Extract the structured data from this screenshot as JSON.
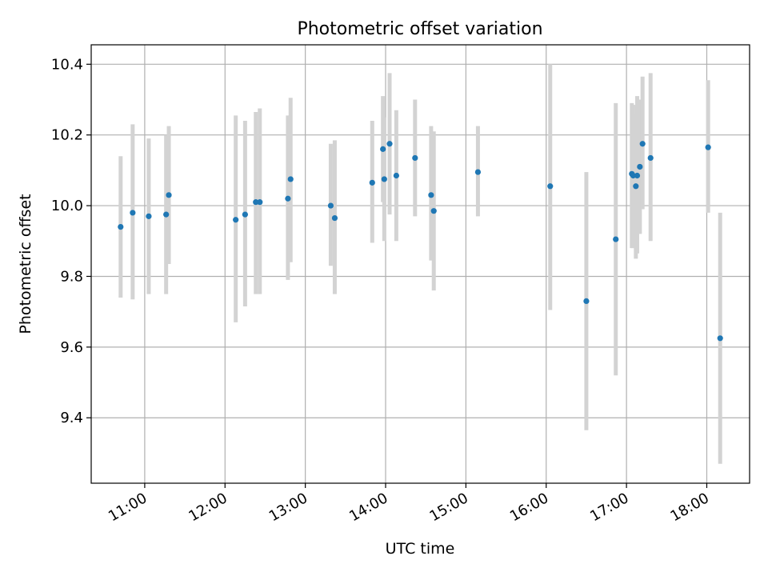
{
  "chart_data": {
    "type": "scatter",
    "title": "Photometric offset variation",
    "xlabel": "UTC time",
    "ylabel": "Photometric offset",
    "xlim": [
      "10:20",
      "18:32"
    ],
    "ylim": [
      9.215,
      10.455
    ],
    "grid": true,
    "x_ticks": [
      "11:00",
      "12:00",
      "13:00",
      "14:00",
      "15:00",
      "16:00",
      "17:00",
      "18:00"
    ],
    "y_ticks": [
      "9.4",
      "9.6",
      "9.8",
      "10.0",
      "10.2",
      "10.4"
    ],
    "colors": {
      "marker": "#1f77b4",
      "errorbar": "#d3d3d3",
      "grid": "#b0b0b0"
    },
    "series": [
      {
        "points": [
          {
            "x": "10:42",
            "y": 9.94,
            "ylow": 9.74,
            "yhigh": 10.14
          },
          {
            "x": "10:51",
            "y": 9.98,
            "ylow": 9.735,
            "yhigh": 10.23
          },
          {
            "x": "11:03",
            "y": 9.97,
            "ylow": 9.75,
            "yhigh": 10.19
          },
          {
            "x": "11:16",
            "y": 9.975,
            "ylow": 9.75,
            "yhigh": 10.2
          },
          {
            "x": "11:18",
            "y": 10.03,
            "ylow": 9.835,
            "yhigh": 10.225
          },
          {
            "x": "12:08",
            "y": 9.96,
            "ylow": 9.67,
            "yhigh": 10.255
          },
          {
            "x": "12:15",
            "y": 9.975,
            "ylow": 9.715,
            "yhigh": 10.24
          },
          {
            "x": "12:23",
            "y": 10.01,
            "ylow": 9.75,
            "yhigh": 10.265
          },
          {
            "x": "12:26",
            "y": 10.01,
            "ylow": 9.75,
            "yhigh": 10.275
          },
          {
            "x": "12:47",
            "y": 10.02,
            "ylow": 9.79,
            "yhigh": 10.255
          },
          {
            "x": "12:49",
            "y": 10.075,
            "ylow": 9.84,
            "yhigh": 10.305
          },
          {
            "x": "13:19",
            "y": 10.0,
            "ylow": 9.83,
            "yhigh": 10.175
          },
          {
            "x": "13:22",
            "y": 9.965,
            "ylow": 9.75,
            "yhigh": 10.185
          },
          {
            "x": "13:50",
            "y": 10.065,
            "ylow": 9.895,
            "yhigh": 10.24
          },
          {
            "x": "13:58",
            "y": 10.16,
            "ylow": 10.01,
            "yhigh": 10.31
          },
          {
            "x": "13:59",
            "y": 10.075,
            "ylow": 9.9,
            "yhigh": 10.25
          },
          {
            "x": "14:03",
            "y": 10.175,
            "ylow": 9.975,
            "yhigh": 10.375
          },
          {
            "x": "14:08",
            "y": 10.085,
            "ylow": 9.9,
            "yhigh": 10.27
          },
          {
            "x": "14:22",
            "y": 10.135,
            "ylow": 9.97,
            "yhigh": 10.3
          },
          {
            "x": "14:34",
            "y": 10.03,
            "ylow": 9.845,
            "yhigh": 10.225
          },
          {
            "x": "14:36",
            "y": 9.985,
            "ylow": 9.76,
            "yhigh": 10.21
          },
          {
            "x": "15:09",
            "y": 10.095,
            "ylow": 9.97,
            "yhigh": 10.225
          },
          {
            "x": "16:03",
            "y": 10.055,
            "ylow": 9.705,
            "yhigh": 10.4
          },
          {
            "x": "16:30",
            "y": 9.73,
            "ylow": 9.365,
            "yhigh": 10.095
          },
          {
            "x": "16:52",
            "y": 9.905,
            "ylow": 9.52,
            "yhigh": 10.29
          },
          {
            "x": "17:04",
            "y": 10.09,
            "ylow": 9.88,
            "yhigh": 10.29
          },
          {
            "x": "17:05",
            "y": 10.085,
            "ylow": 9.88,
            "yhigh": 10.285
          },
          {
            "x": "17:07",
            "y": 10.055,
            "ylow": 9.85,
            "yhigh": 10.26
          },
          {
            "x": "17:08",
            "y": 10.085,
            "ylow": 9.865,
            "yhigh": 10.31
          },
          {
            "x": "17:10",
            "y": 10.11,
            "ylow": 9.92,
            "yhigh": 10.3
          },
          {
            "x": "17:12",
            "y": 10.175,
            "ylow": 9.99,
            "yhigh": 10.365
          },
          {
            "x": "17:18",
            "y": 10.135,
            "ylow": 9.9,
            "yhigh": 10.375
          },
          {
            "x": "18:01",
            "y": 10.165,
            "ylow": 9.98,
            "yhigh": 10.355
          },
          {
            "x": "18:10",
            "y": 9.625,
            "ylow": 9.27,
            "yhigh": 9.98
          }
        ]
      }
    ]
  }
}
